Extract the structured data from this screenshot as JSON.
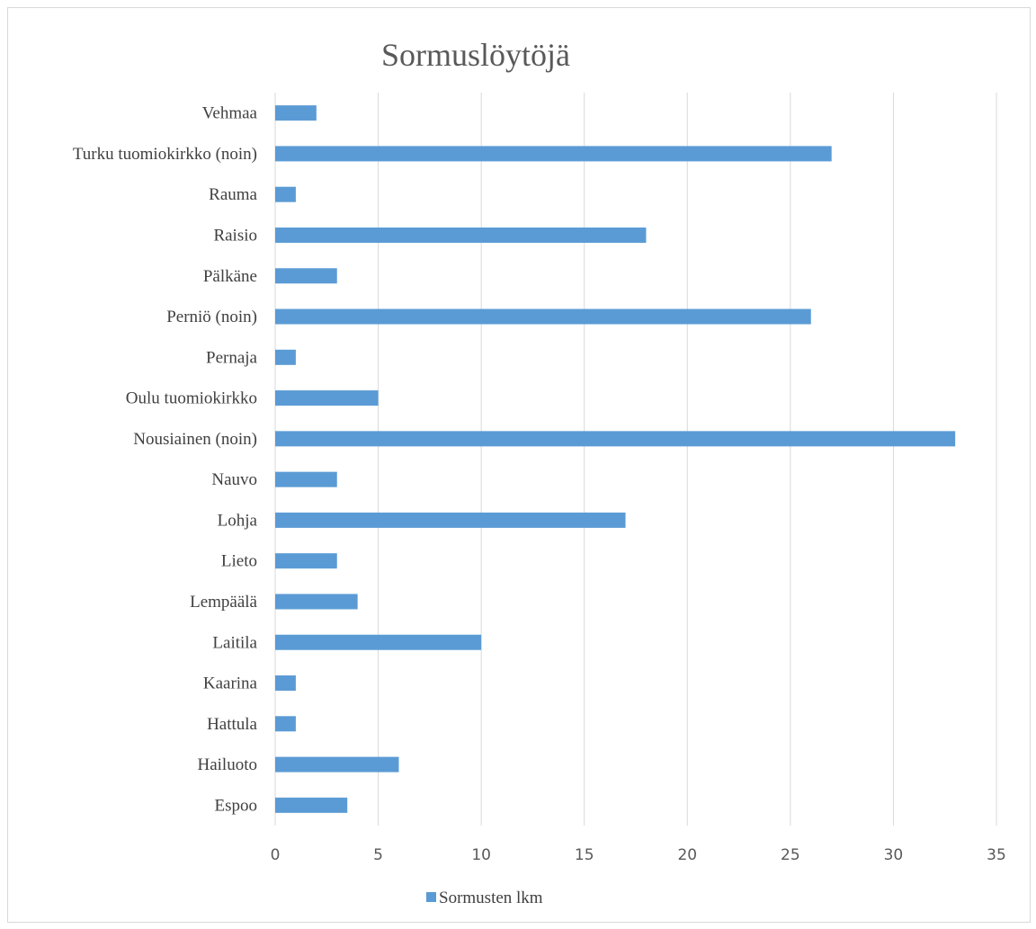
{
  "chart_data": {
    "type": "bar",
    "orientation": "horizontal",
    "title": "Sormuslöytöjä",
    "xlabel": "",
    "ylabel": "",
    "categories": [
      "Vehmaa",
      "Turku tuomiokirkko (noin)",
      "Rauma",
      "Raisio",
      "Pälkäne",
      "Perniö (noin)",
      "Pernaja",
      "Oulu tuomiokirkko",
      "Nousiainen (noin)",
      "Nauvo",
      "Lohja",
      "Lieto",
      "Lempäälä",
      "Laitila",
      "Kaarina",
      "Hattula",
      "Hailuoto",
      "Espoo"
    ],
    "series": [
      {
        "name": "Sormusten lkm",
        "color": "#5b9bd5",
        "values": [
          2,
          27,
          1,
          18,
          3,
          26,
          1,
          5,
          33,
          3,
          17,
          3,
          4,
          10,
          1,
          1,
          6,
          3.5
        ]
      }
    ],
    "xlim": [
      0,
      35
    ],
    "xticks": [
      "0",
      "5",
      "10",
      "15",
      "20",
      "25",
      "30",
      "35"
    ],
    "grid": true,
    "legend_position": "bottom"
  }
}
